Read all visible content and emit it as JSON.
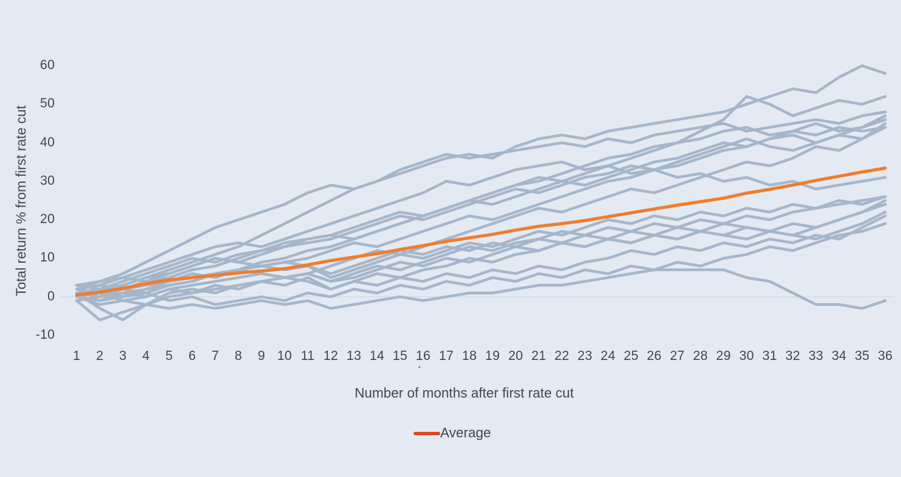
{
  "theme": {
    "background": "#e4eaf2",
    "text": "#3d4654",
    "gridline": "#d2dae6",
    "episode_line": "#a5b6c9",
    "average_line": "#ee7d2e",
    "legend_swatch": "#d44d1c"
  },
  "artifacts": [
    {
      "type": "dot",
      "near": "below x-axis tick 16"
    }
  ],
  "chart_data": {
    "type": "line",
    "title": "",
    "xlabel": "Number of months after first rate cut",
    "ylabel": "Total return % from first rate cut",
    "x": [
      1,
      2,
      3,
      4,
      5,
      6,
      7,
      8,
      9,
      10,
      11,
      12,
      13,
      14,
      15,
      16,
      17,
      18,
      19,
      20,
      21,
      22,
      23,
      24,
      25,
      26,
      27,
      28,
      29,
      30,
      31,
      32,
      33,
      34,
      35,
      36
    ],
    "y_ticks": [
      -10,
      0,
      10,
      20,
      30,
      40,
      50,
      60
    ],
    "xlim": [
      1,
      36
    ],
    "ylim": [
      -10,
      60
    ],
    "grid": "horizontal zero line only",
    "legend": {
      "position": "bottom-center",
      "entries": [
        {
          "label": "Average"
        }
      ]
    },
    "series": [
      {
        "id": "episode-1",
        "values": [
          2,
          4,
          6,
          9,
          12,
          15,
          18,
          20,
          22,
          24,
          27,
          29,
          28,
          30,
          32,
          34,
          36,
          37,
          36,
          39,
          41,
          42,
          41,
          43,
          44,
          45,
          46,
          47,
          48,
          50,
          52,
          54,
          53,
          57,
          60,
          58
        ]
      },
      {
        "id": "episode-2",
        "values": [
          2,
          3,
          2,
          4,
          5,
          7,
          8,
          10,
          12,
          14,
          15,
          16,
          15,
          17,
          19,
          21,
          23,
          25,
          27,
          29,
          31,
          30,
          32,
          34,
          36,
          38,
          40,
          43,
          46,
          52,
          50,
          47,
          49,
          51,
          50,
          52
        ]
      },
      {
        "id": "episode-3",
        "values": [
          0,
          1,
          3,
          5,
          7,
          9,
          11,
          13,
          16,
          19,
          22,
          25,
          28,
          30,
          33,
          35,
          37,
          36,
          37,
          38,
          39,
          40,
          39,
          41,
          40,
          42,
          43,
          44,
          45,
          43,
          44,
          45,
          46,
          45,
          47,
          48
        ]
      },
      {
        "id": "episode-4",
        "values": [
          1,
          0,
          2,
          3,
          4,
          5,
          6,
          7,
          9,
          10,
          12,
          13,
          15,
          17,
          19,
          21,
          23,
          25,
          27,
          29,
          30,
          32,
          34,
          36,
          37,
          39,
          40,
          41,
          43,
          44,
          42,
          43,
          45,
          43,
          44,
          47
        ]
      },
      {
        "id": "episode-5",
        "values": [
          0,
          -1,
          1,
          2,
          3,
          4,
          6,
          7,
          8,
          9,
          10,
          12,
          14,
          13,
          15,
          17,
          19,
          21,
          20,
          22,
          24,
          26,
          28,
          30,
          31,
          33,
          34,
          36,
          38,
          39,
          41,
          42,
          40,
          42,
          44,
          46
        ]
      },
      {
        "id": "episode-6",
        "values": [
          1,
          2,
          4,
          6,
          8,
          10,
          9,
          11,
          12,
          13,
          14,
          15,
          17,
          19,
          21,
          20,
          22,
          24,
          26,
          28,
          27,
          29,
          31,
          32,
          34,
          33,
          35,
          37,
          39,
          41,
          39,
          38,
          40,
          42,
          41,
          45
        ]
      },
      {
        "id": "episode-7",
        "values": [
          3,
          2,
          3,
          5,
          6,
          8,
          10,
          9,
          11,
          13,
          15,
          16,
          18,
          20,
          22,
          21,
          23,
          25,
          24,
          26,
          28,
          30,
          29,
          31,
          33,
          35,
          36,
          38,
          40,
          39,
          41,
          43,
          42,
          44,
          43,
          44
        ]
      },
      {
        "id": "episode-8",
        "values": [
          -1,
          -6,
          -4,
          -2,
          0,
          1,
          2,
          3,
          4,
          5,
          6,
          8,
          10,
          12,
          11,
          13,
          15,
          17,
          19,
          21,
          23,
          22,
          24,
          26,
          28,
          27,
          29,
          31,
          33,
          35,
          34,
          36,
          39,
          38,
          41,
          44
        ]
      },
      {
        "id": "episode-9",
        "values": [
          3,
          4,
          5,
          7,
          9,
          11,
          13,
          14,
          13,
          15,
          17,
          19,
          21,
          23,
          25,
          27,
          30,
          29,
          31,
          33,
          34,
          35,
          33,
          34,
          32,
          33,
          31,
          32,
          30,
          31,
          29,
          30,
          28,
          29,
          30,
          31
        ]
      },
      {
        "id": "episode-10",
        "values": [
          0,
          1,
          -1,
          0,
          2,
          3,
          4,
          5,
          6,
          5,
          6,
          4,
          6,
          8,
          7,
          9,
          11,
          13,
          12,
          14,
          15,
          17,
          16,
          18,
          17,
          19,
          18,
          20,
          19,
          21,
          20,
          22,
          23,
          24,
          25,
          26
        ]
      },
      {
        "id": "episode-11",
        "values": [
          2,
          1,
          2,
          1,
          3,
          4,
          6,
          7,
          8,
          9,
          8,
          5,
          7,
          9,
          11,
          10,
          12,
          14,
          13,
          15,
          17,
          16,
          18,
          20,
          19,
          21,
          20,
          22,
          21,
          23,
          22,
          24,
          23,
          25,
          24,
          26
        ]
      },
      {
        "id": "episode-12",
        "values": [
          1,
          -3,
          -6,
          -2,
          1,
          2,
          1,
          3,
          4,
          5,
          4,
          2,
          4,
          6,
          5,
          7,
          8,
          10,
          9,
          11,
          12,
          14,
          13,
          15,
          14,
          16,
          15,
          17,
          16,
          18,
          17,
          19,
          18,
          20,
          22,
          25
        ]
      },
      {
        "id": "episode-13",
        "values": [
          0,
          -1,
          0,
          2,
          4,
          6,
          5,
          7,
          6,
          5,
          6,
          4,
          5,
          7,
          9,
          8,
          10,
          9,
          11,
          13,
          12,
          14,
          13,
          15,
          14,
          16,
          15,
          17,
          16,
          15,
          17,
          16,
          18,
          20,
          22,
          24
        ]
      },
      {
        "id": "episode-14",
        "values": [
          2,
          3,
          5,
          4,
          6,
          8,
          10,
          9,
          8,
          7,
          8,
          6,
          8,
          10,
          12,
          11,
          13,
          12,
          14,
          13,
          15,
          14,
          16,
          15,
          17,
          16,
          18,
          17,
          19,
          18,
          17,
          16,
          15,
          17,
          19,
          22
        ]
      },
      {
        "id": "episode-15",
        "values": [
          -1,
          0,
          1,
          0,
          2,
          1,
          3,
          2,
          4,
          3,
          5,
          2,
          4,
          3,
          5,
          4,
          6,
          5,
          7,
          6,
          8,
          7,
          9,
          10,
          12,
          11,
          13,
          12,
          14,
          13,
          15,
          14,
          16,
          15,
          18,
          21
        ]
      },
      {
        "id": "episode-16",
        "values": [
          1,
          2,
          0,
          1,
          -1,
          0,
          -2,
          -1,
          0,
          -1,
          1,
          0,
          2,
          1,
          3,
          2,
          4,
          3,
          5,
          4,
          6,
          5,
          7,
          6,
          8,
          7,
          9,
          8,
          10,
          11,
          13,
          12,
          14,
          16,
          17,
          19
        ]
      },
      {
        "id": "episode-17",
        "values": [
          0,
          -2,
          -1,
          -2,
          -3,
          -2,
          -3,
          -2,
          -1,
          -2,
          -1,
          -3,
          -2,
          -1,
          0,
          -1,
          0,
          1,
          1,
          2,
          3,
          3,
          4,
          5,
          6,
          7,
          7,
          7,
          7,
          5,
          4,
          1,
          -2,
          -2,
          -3,
          -1
        ]
      }
    ],
    "average_series": {
      "name": "Average",
      "values": [
        0.5,
        1.2,
        2.2,
        3.4,
        4.4,
        5.0,
        5.6,
        6.2,
        6.7,
        7.3,
        8.3,
        9.4,
        10.3,
        11.2,
        12.3,
        13.3,
        14.4,
        15.3,
        16.2,
        17.3,
        18.3,
        19.0,
        19.8,
        20.8,
        21.8,
        22.8,
        23.8,
        24.7,
        25.6,
        26.9,
        27.9,
        29.0,
        30.2,
        31.3,
        32.4,
        33.4
      ]
    }
  }
}
